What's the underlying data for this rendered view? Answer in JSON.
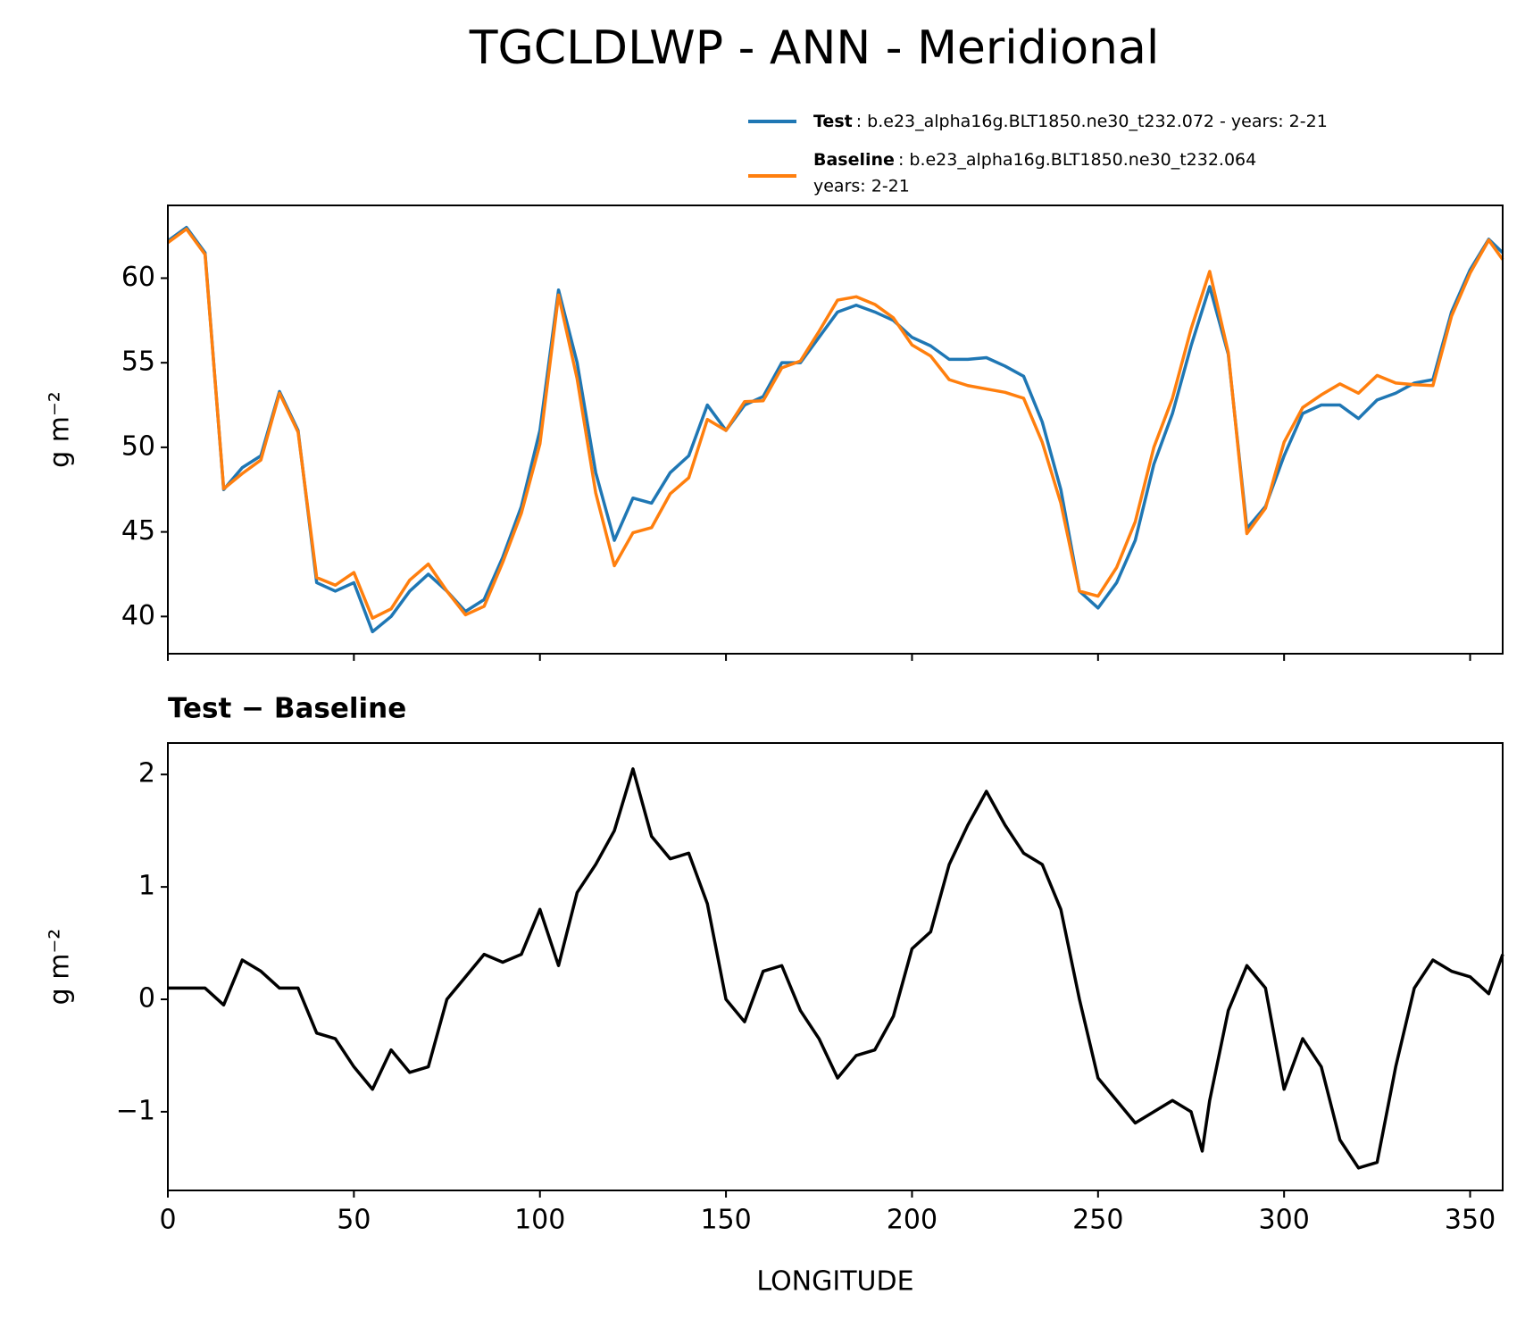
{
  "title": "TGCLDLWP - ANN - Meridional",
  "chart_data": [
    {
      "type": "line",
      "ylabel": "g m⁻²",
      "x": [
        0,
        5,
        10,
        15,
        20,
        25,
        30,
        35,
        40,
        45,
        50,
        55,
        60,
        65,
        70,
        75,
        80,
        85,
        90,
        95,
        100,
        105,
        110,
        115,
        120,
        125,
        130,
        135,
        140,
        145,
        150,
        155,
        160,
        165,
        170,
        175,
        180,
        185,
        190,
        195,
        200,
        205,
        210,
        215,
        220,
        225,
        230,
        235,
        240,
        245,
        250,
        255,
        260,
        265,
        270,
        275,
        280,
        285,
        290,
        295,
        300,
        305,
        310,
        315,
        320,
        325,
        330,
        335,
        340,
        345,
        350,
        355,
        358.75
      ],
      "series": [
        {
          "name": "Test",
          "description": [
            ": b.e23_alpha16g.BLT1850.ne30_t232.072 - years: 2-21"
          ],
          "color": "#1f77b4",
          "values": [
            62.2,
            63.0,
            61.5,
            47.5,
            48.8,
            49.5,
            53.3,
            51,
            42,
            41.5,
            42,
            39.1,
            40,
            41.5,
            42.5,
            41.5,
            40.3,
            41,
            43.5,
            46.5,
            51,
            59.3,
            55,
            48.5,
            44.5,
            47,
            46.7,
            48.5,
            49.5,
            52.5,
            51,
            52.5,
            53,
            55,
            55,
            56.5,
            58,
            58.4,
            58,
            57.5,
            56.5,
            56,
            55.2,
            55.2,
            55.3,
            54.8,
            54.2,
            51.5,
            47.5,
            41.5,
            40.5,
            42,
            44.5,
            49,
            52,
            56,
            59.5,
            55.5,
            45.2,
            46.5,
            49.5,
            52,
            52.5,
            52.5,
            51.7,
            52.8,
            53.2,
            53.8,
            54,
            58,
            60.5,
            62.3,
            61.5
          ]
        },
        {
          "name": "Baseline",
          "description": [
            ": b.e23_alpha16g.BLT1850.ne30_t232.064",
            "years: 2-21"
          ],
          "color": "#ff7f0e",
          "values": [
            62.1,
            62.9,
            61.4,
            47.55,
            48.45,
            49.25,
            53.2,
            50.9,
            42.3,
            41.85,
            42.6,
            39.9,
            40.45,
            42.15,
            43.1,
            41.5,
            40.1,
            40.6,
            43.2,
            46.1,
            50.2,
            59.0,
            54.05,
            47.3,
            43.0,
            44.95,
            45.25,
            47.25,
            48.2,
            51.65,
            51.0,
            52.7,
            52.75,
            54.7,
            55.1,
            56.85,
            58.7,
            58.9,
            58.45,
            57.65,
            56.05,
            55.4,
            54.0,
            53.65,
            53.45,
            53.25,
            52.9,
            50.3,
            46.7,
            41.5,
            41.2,
            42.9,
            45.6,
            50.0,
            52.9,
            57.0,
            60.4,
            55.6,
            44.9,
            46.4,
            50.3,
            52.35,
            53.1,
            53.75,
            53.2,
            54.25,
            53.8,
            53.7,
            53.65,
            57.75,
            60.3,
            62.25,
            61.1
          ]
        }
      ],
      "xlim": [
        0,
        358.75
      ],
      "xticks": [
        0,
        50,
        100,
        150,
        200,
        250,
        300,
        350
      ],
      "ylim": [
        37.8,
        64.3
      ],
      "yticks": [
        40,
        45,
        50,
        55,
        60
      ],
      "legend": "upper right"
    },
    {
      "type": "line",
      "title": "Test − Baseline",
      "ylabel": "g m⁻²",
      "xlabel": "LONGITUDE",
      "x": [
        0,
        5,
        10,
        15,
        20,
        25,
        30,
        35,
        40,
        45,
        50,
        55,
        60,
        65,
        70,
        75,
        80,
        85,
        90,
        95,
        100,
        105,
        110,
        115,
        120,
        125,
        130,
        135,
        140,
        145,
        150,
        155,
        160,
        165,
        170,
        175,
        180,
        185,
        190,
        195,
        200,
        205,
        210,
        215,
        220,
        225,
        230,
        235,
        240,
        245,
        250,
        255,
        260,
        265,
        270,
        275,
        278,
        280,
        285,
        290,
        295,
        300,
        305,
        310,
        315,
        320,
        325,
        330,
        335,
        340,
        345,
        350,
        355,
        358.75
      ],
      "series": [
        {
          "color": "#000000",
          "values": [
            0.1,
            0.1,
            0.1,
            -0.05,
            0.35,
            0.25,
            0.1,
            0.1,
            -0.3,
            -0.35,
            -0.6,
            -0.8,
            -0.45,
            -0.65,
            -0.6,
            0.0,
            0.2,
            0.4,
            0.33,
            0.4,
            0.8,
            0.3,
            0.95,
            1.2,
            1.5,
            2.05,
            1.45,
            1.25,
            1.3,
            0.85,
            0.0,
            -0.2,
            0.25,
            0.3,
            -0.1,
            -0.35,
            -0.7,
            -0.5,
            -0.45,
            -0.15,
            0.45,
            0.6,
            1.2,
            1.55,
            1.85,
            1.55,
            1.3,
            1.2,
            0.8,
            0.0,
            -0.7,
            -0.9,
            -1.1,
            -1.0,
            -0.9,
            -1.0,
            -1.35,
            -0.9,
            -0.1,
            0.3,
            0.1,
            -0.8,
            -0.35,
            -0.6,
            -1.25,
            -1.5,
            -1.45,
            -0.6,
            0.1,
            0.35,
            0.25,
            0.2,
            0.05,
            0.4
          ]
        }
      ],
      "xlim": [
        0,
        358.75
      ],
      "xticks": [
        0,
        50,
        100,
        150,
        200,
        250,
        300,
        350
      ],
      "ylim": [
        -1.7,
        2.28
      ],
      "yticks": [
        {
          "value": -1,
          "label": "−1"
        },
        0,
        1,
        2
      ]
    }
  ]
}
